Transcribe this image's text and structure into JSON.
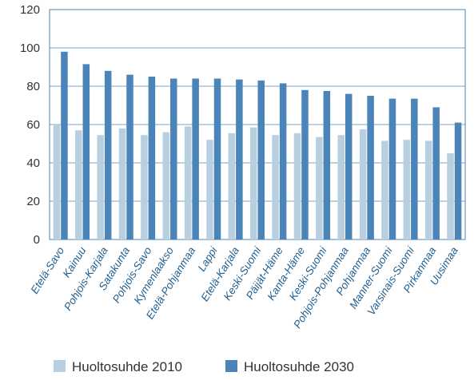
{
  "chart_data": {
    "type": "bar",
    "categories": [
      "Etelä-Savo",
      "Kainuu",
      "Pohjois-Karjala",
      "Satakunta",
      "Pohjois-Savo",
      "Kymenlaakso",
      "Etelä-Pohjanmaa",
      "Lappi",
      "Etelä-Karjala",
      "Keski-Suomi",
      "Päijät-Häme",
      "Kanta-Häme",
      "Keski-Suomi",
      "Pohjois-Pohjanmaa",
      "Pohjanmaa",
      "Manner-Suomi",
      "Varsinais-Suomi",
      "Pirkanmaa",
      "Uusimaa"
    ],
    "series": [
      {
        "name": "Huoltosuhde 2010",
        "color": "#b8cfe0",
        "values": [
          60,
          57,
          54.5,
          58,
          54.5,
          56,
          59,
          52,
          55.5,
          58.5,
          54.5,
          55.5,
          53.5,
          54.5,
          57.5,
          51.5,
          52,
          51.5,
          45
        ]
      },
      {
        "name": "Huoltosuhde 2030",
        "color": "#4a84b8",
        "values": [
          98,
          91.5,
          88,
          86,
          85,
          84,
          84,
          84,
          83.5,
          83,
          81.5,
          78,
          77.5,
          76,
          75,
          73.5,
          73.5,
          69,
          61
        ]
      }
    ],
    "ylim": [
      0,
      120
    ],
    "yticks": [
      0,
      20,
      40,
      60,
      80,
      100,
      120
    ],
    "grid": true,
    "legend_position": "bottom",
    "title": "",
    "xlabel": "",
    "ylabel": ""
  }
}
